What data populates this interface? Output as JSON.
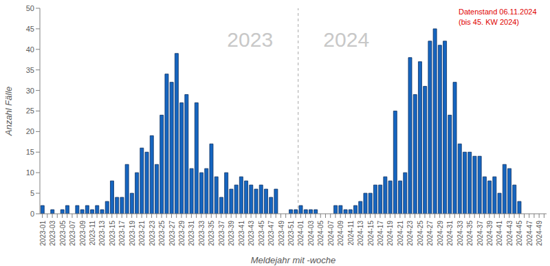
{
  "chart_data": {
    "type": "bar",
    "x_label": "Meldejahr mit -woche",
    "y_label": "Anzahl Fälle",
    "annotations": [
      "2023",
      "2024",
      "Datenstand 06.11.2024",
      "(bis 45. KW 2024)"
    ],
    "categories": [
      "2023-01",
      null,
      "2023-03",
      null,
      "2023-05",
      null,
      "2023-07",
      null,
      "2023-09",
      null,
      "2023-11",
      null,
      "2023-13",
      null,
      "2023-15",
      null,
      "2023-17",
      null,
      "2023-19",
      null,
      "2023-21",
      null,
      "2023-23",
      null,
      "2023-25",
      null,
      "2023-27",
      null,
      "2023-29",
      null,
      "2023-31",
      null,
      "2023-33",
      null,
      "2023-35",
      null,
      "2023-37",
      null,
      "2023-39",
      null,
      "2023-41",
      null,
      "2023-43",
      null,
      "2023-45",
      null,
      "2023-47",
      null,
      "2023-49",
      null,
      "2023-51",
      null,
      "2024-01",
      null,
      "2024-03",
      null,
      "2024-05",
      null,
      "2024-07",
      null,
      "2024-09",
      null,
      "2024-11",
      null,
      "2024-13",
      null,
      "2024-15",
      null,
      "2024-17",
      null,
      "2024-19",
      null,
      "2024-21",
      null,
      "2024-23",
      null,
      "2024-25",
      null,
      "2024-27",
      null,
      "2024-29",
      null,
      "2024-31",
      null,
      "2024-33",
      null,
      "2024-35",
      null,
      "2024-37",
      null,
      "2024-39",
      null,
      "2024-41",
      null,
      "2024-43",
      null,
      "2024-45",
      null,
      "2024-47",
      null,
      "2024-49",
      null
    ],
    "values": [
      2,
      0,
      1,
      0,
      1,
      2,
      0,
      2,
      1,
      2,
      1,
      2,
      1,
      3,
      8,
      4,
      4,
      12,
      5,
      10,
      16,
      15,
      19,
      12,
      24,
      34,
      32,
      39,
      27,
      29,
      11,
      27,
      10,
      11,
      17,
      9,
      4,
      10,
      6,
      7,
      9,
      8,
      7,
      6,
      7,
      6,
      4,
      6,
      0,
      0,
      1,
      1,
      2,
      1,
      1,
      1,
      0,
      0,
      0,
      2,
      2,
      1,
      1,
      2,
      3,
      5,
      5,
      7,
      7,
      9,
      8,
      25,
      8,
      10,
      38,
      29,
      37,
      31,
      42,
      45,
      41,
      42,
      24,
      32,
      17,
      15,
      15,
      14,
      14,
      9,
      8,
      9,
      5,
      12,
      11,
      7,
      3,
      0,
      0,
      0,
      0,
      0
    ],
    "color": "#1565c0",
    "ylim": [
      0,
      50
    ],
    "yticks": [
      0,
      5,
      10,
      15,
      20,
      25,
      30,
      35,
      40,
      45,
      50
    ],
    "grid": false
  }
}
